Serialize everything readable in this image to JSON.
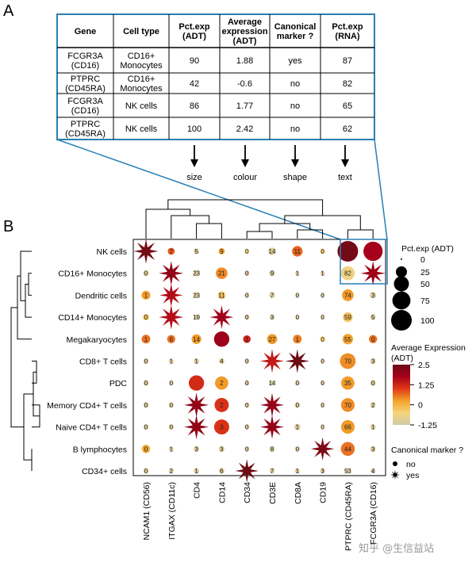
{
  "panel_a": {
    "letter": "A",
    "headers": [
      [
        "Gene"
      ],
      [
        "Cell type"
      ],
      [
        "Pct.exp",
        "(ADT)"
      ],
      [
        "Average",
        "expression",
        "(ADT)"
      ],
      [
        "Canonical",
        "marker ?"
      ],
      [
        "Pct.exp",
        "(RNA)"
      ]
    ],
    "rows": [
      [
        [
          "FCGR3A",
          "(CD16)"
        ],
        [
          "CD16+",
          "Monocytes"
        ],
        [
          "90"
        ],
        [
          "1.88"
        ],
        [
          "yes"
        ],
        [
          "87"
        ]
      ],
      [
        [
          "PTPRC",
          "(CD45RA)"
        ],
        [
          "CD16+",
          "Monocytes"
        ],
        [
          "42"
        ],
        [
          "-0.6"
        ],
        [
          "no"
        ],
        [
          "82"
        ]
      ],
      [
        [
          "FCGR3A",
          "(CD16)"
        ],
        [
          "NK cells"
        ],
        [
          "86"
        ],
        [
          "1.77"
        ],
        [
          "no"
        ],
        [
          "65"
        ]
      ],
      [
        [
          "PTPRC",
          "(CD45RA)"
        ],
        [
          "NK cells"
        ],
        [
          "100"
        ],
        [
          "2.42"
        ],
        [
          "no"
        ],
        [
          "62"
        ]
      ]
    ],
    "mapping": [
      "size",
      "colour",
      "shape",
      "text"
    ]
  },
  "panel_b": {
    "letter": "B",
    "legend": {
      "size_title": "Pct.exp (ADT)",
      "size_values": [
        0,
        25,
        50,
        75,
        100
      ],
      "size_labels": [
        "0",
        "25",
        "50",
        "75",
        "100"
      ],
      "color_title": [
        "Average Expression",
        "(ADT)"
      ],
      "color_ticks": [
        "2.5",
        "1.25",
        "0",
        "-1.25"
      ],
      "color_tick_values": [
        2.5,
        1.25,
        0,
        -1.25
      ],
      "shape_title": "Canonical marker ?",
      "shape_labels": [
        "no",
        "yes"
      ]
    },
    "colors": {
      "highlight": "#2a7fb3",
      "scale": [
        "#d2c9ad",
        "#f5d57a",
        "#f3a22a",
        "#e03a16",
        "#a8001a",
        "#6d0c15"
      ]
    }
  },
  "chart_data": {
    "type": "dotplot",
    "title": "",
    "size_meaning": "Pct.exp (ADT)",
    "color_meaning": "Average Expression (ADT)",
    "shape_meaning": "Canonical marker ?",
    "color_range": [
      -1.25,
      2.5
    ],
    "rows": [
      "NK cells",
      "CD16+ Monocytes",
      "Dendritic cells",
      "CD14+ Monocytes",
      "Megakaryocytes",
      "CD8+ T cells",
      "PDC",
      "Memory CD4+ T cells",
      "Naive CD4+ T cells",
      "B lymphocytes",
      "CD34+ cells"
    ],
    "columns": [
      "NCAM1 (CD56)",
      "ITGAX (CD11c)",
      "CD4",
      "CD14",
      "CD34",
      "CD3E",
      "CD8A",
      "CD19",
      "PTPRC (CD45RA)",
      "FCGR3A (CD16)"
    ],
    "text_meaning": "Pct.exp (RNA)",
    "text": [
      [
        "",
        "7",
        "5",
        "9",
        "0",
        "14",
        "11",
        "0",
        "",
        ""
      ],
      [
        "0",
        "",
        "23",
        "21",
        "0",
        "9",
        "1",
        "1",
        "82",
        ""
      ],
      [
        "1",
        "",
        "23",
        "11",
        "0",
        "7",
        "0",
        "0",
        "74",
        "3"
      ],
      [
        "0",
        "",
        "19",
        "",
        "0",
        "3",
        "0",
        "0",
        "59",
        "5"
      ],
      [
        "1",
        "6",
        "14",
        "",
        "1",
        "27",
        "1",
        "0",
        "55",
        "0"
      ],
      [
        "0",
        "1",
        "1",
        "4",
        "0",
        "",
        "",
        "0",
        "70",
        "3"
      ],
      [
        "0",
        "0",
        "",
        "2",
        "0",
        "14",
        "0",
        "0",
        "35",
        "0"
      ],
      [
        "0",
        "0",
        "",
        "2",
        "0",
        "",
        "0",
        "0",
        "70",
        "2"
      ],
      [
        "0",
        "0",
        "",
        "3",
        "0",
        "",
        "1",
        "0",
        "66",
        "1"
      ],
      [
        "0",
        "1",
        "3",
        "3",
        "0",
        "8",
        "0",
        "",
        "44",
        "3"
      ],
      [
        "0",
        "2",
        "1",
        "6",
        "",
        "7",
        "1",
        "3",
        "53",
        "4"
      ]
    ],
    "pct_exp": [
      [
        92,
        8,
        4,
        6,
        3,
        10,
        22,
        3,
        100,
        86
      ],
      [
        5,
        90,
        6,
        28,
        3,
        5,
        2,
        2,
        42,
        90
      ],
      [
        14,
        80,
        6,
        10,
        3,
        5,
        2,
        2,
        28,
        6
      ],
      [
        6,
        90,
        4,
        85,
        3,
        3,
        2,
        2,
        18,
        4
      ],
      [
        14,
        12,
        18,
        52,
        10,
        20,
        14,
        4,
        22,
        12
      ],
      [
        4,
        3,
        4,
        4,
        3,
        85,
        85,
        2,
        55,
        4
      ],
      [
        4,
        3,
        52,
        38,
        3,
        4,
        3,
        2,
        38,
        4
      ],
      [
        4,
        3,
        90,
        44,
        3,
        85,
        4,
        2,
        40,
        4
      ],
      [
        4,
        3,
        90,
        50,
        3,
        85,
        6,
        2,
        40,
        4
      ],
      [
        12,
        3,
        4,
        4,
        3,
        4,
        3,
        80,
        42,
        4
      ],
      [
        4,
        3,
        4,
        4,
        80,
        4,
        3,
        3,
        4,
        3
      ]
    ],
    "avg_exp": [
      [
        2.4,
        0.8,
        -1.0,
        0.2,
        -0.5,
        -1.0,
        0.7,
        -0.3,
        2.42,
        1.77
      ],
      [
        -1.0,
        2.0,
        -1.0,
        0.4,
        -1.0,
        -1.0,
        -1.0,
        -1.0,
        -0.6,
        1.88
      ],
      [
        0.3,
        1.6,
        -1.0,
        -0.2,
        -1.0,
        -1.0,
        -1.0,
        -1.0,
        0.3,
        -1.0
      ],
      [
        -0.2,
        1.6,
        -1.0,
        1.8,
        -1.0,
        -1.0,
        -1.0,
        -1.0,
        -0.2,
        -1.0
      ],
      [
        0.6,
        0.6,
        0.3,
        1.9,
        1.3,
        0.3,
        0.5,
        -0.5,
        0.2,
        0.6
      ],
      [
        -1.0,
        -1.0,
        -1.0,
        -1.0,
        -1.0,
        1.4,
        2.6,
        -1.0,
        0.4,
        -1.0
      ],
      [
        -1.0,
        -1.0,
        1.2,
        0.3,
        -1.0,
        -1.0,
        -1.0,
        -1.0,
        0.3,
        -1.0
      ],
      [
        -1.0,
        -1.0,
        2.0,
        1.1,
        -1.0,
        2.0,
        -1.0,
        -1.0,
        0.4,
        -1.0
      ],
      [
        -1.0,
        -1.0,
        2.0,
        1.1,
        -1.0,
        2.0,
        -1.0,
        -1.0,
        0.3,
        -1.0
      ],
      [
        0.2,
        -1.0,
        -1.0,
        -1.0,
        -1.0,
        -1.0,
        -1.0,
        2.3,
        0.6,
        -1.0
      ],
      [
        -1.0,
        -1.0,
        -1.0,
        -1.0,
        2.5,
        -1.0,
        -1.0,
        -1.0,
        -1.0,
        -1.0
      ]
    ],
    "canonical": [
      [
        1,
        0,
        0,
        0,
        0,
        0,
        0,
        0,
        0,
        0
      ],
      [
        0,
        1,
        0,
        0,
        0,
        0,
        0,
        0,
        0,
        1
      ],
      [
        0,
        1,
        0,
        0,
        0,
        0,
        0,
        0,
        0,
        0
      ],
      [
        0,
        1,
        0,
        1,
        0,
        0,
        0,
        0,
        0,
        0
      ],
      [
        0,
        0,
        0,
        0,
        0,
        0,
        0,
        0,
        0,
        0
      ],
      [
        0,
        0,
        0,
        0,
        0,
        1,
        1,
        0,
        0,
        0
      ],
      [
        0,
        0,
        0,
        0,
        0,
        0,
        0,
        0,
        0,
        0
      ],
      [
        0,
        0,
        1,
        0,
        0,
        1,
        0,
        0,
        0,
        0
      ],
      [
        0,
        0,
        1,
        0,
        0,
        1,
        0,
        0,
        0,
        0
      ],
      [
        0,
        0,
        0,
        0,
        0,
        0,
        0,
        1,
        0,
        0
      ],
      [
        0,
        0,
        0,
        0,
        1,
        0,
        0,
        0,
        0,
        0
      ]
    ]
  },
  "watermark": "知乎 @生信益站"
}
